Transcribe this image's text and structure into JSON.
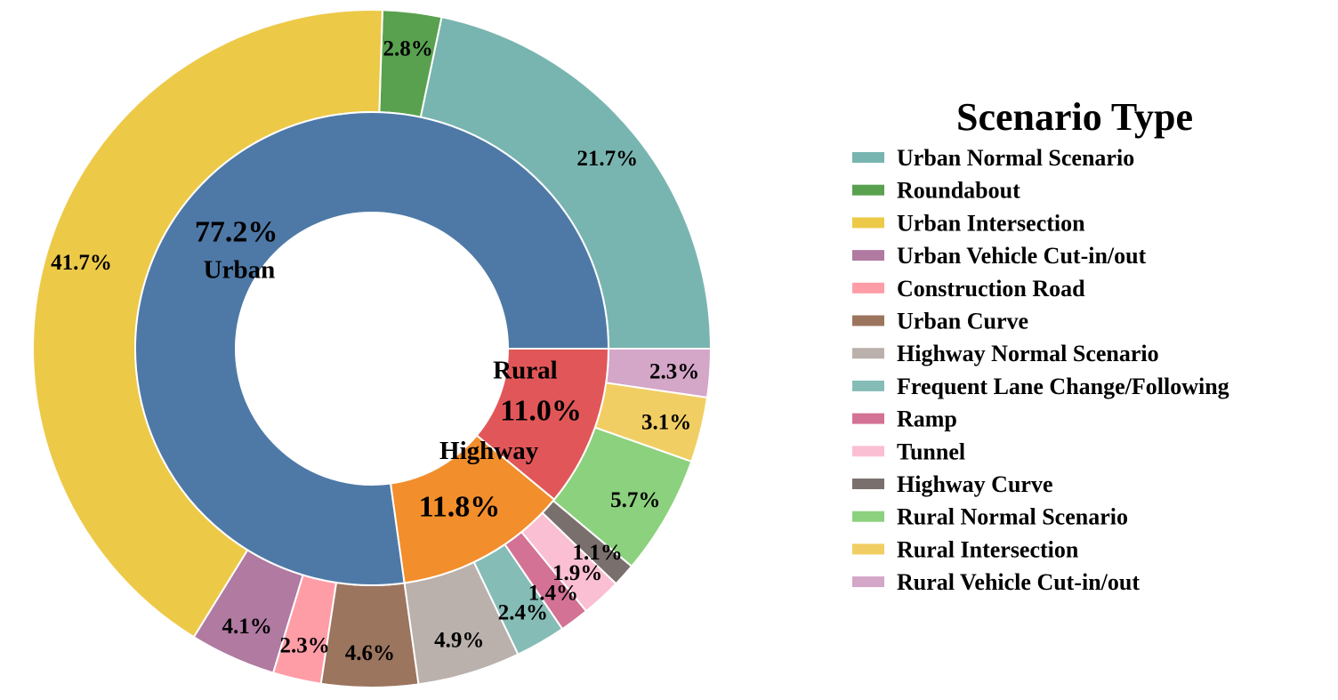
{
  "chart_data": {
    "type": "pie",
    "subtype": "nested-donut",
    "start_angle_deg": 0,
    "direction": "counterclockwise",
    "inner_ring": {
      "categories": [
        "Urban",
        "Highway",
        "Rural"
      ],
      "values": [
        77.2,
        11.8,
        11.0
      ],
      "labels": [
        "77.2%",
        "11.8%",
        "11.0%"
      ],
      "colors": [
        "#4e79a7",
        "#f28e2b",
        "#e15759"
      ]
    },
    "outer_ring": {
      "categories": [
        "Urban Normal Scenario",
        "Roundabout",
        "Urban Intersection",
        "Urban Vehicle Cut-in/out",
        "Construction Road",
        "Urban Curve",
        "Highway Normal Scenario",
        "Frequent Lane Change/Following",
        "Ramp",
        "Tunnel",
        "Highway Curve",
        "Rural Normal Scenario",
        "Rural Intersection",
        "Rural Vehicle Cut-in/out"
      ],
      "values": [
        21.7,
        2.8,
        41.7,
        4.1,
        2.3,
        4.6,
        4.9,
        2.4,
        1.4,
        1.9,
        1.1,
        5.7,
        3.1,
        2.3
      ],
      "labels": [
        "21.7%",
        "2.8%",
        "41.7%",
        "4.1%",
        "2.3%",
        "4.6%",
        "4.9%",
        "2.4%",
        "1.4%",
        "1.9%",
        "1.1%",
        "5.7%",
        "3.1%",
        "2.3%"
      ],
      "colors": [
        "#79b5b0",
        "#59a14f",
        "#edc948",
        "#b07aa1",
        "#ff9da7",
        "#9c755f",
        "#bab0ac",
        "#86bcb6",
        "#d37295",
        "#fabfd2",
        "#79706e",
        "#8cd17d",
        "#f1ce63",
        "#d4a6c8"
      ]
    },
    "legend": {
      "title": "Scenario Type",
      "placement": "right"
    }
  }
}
